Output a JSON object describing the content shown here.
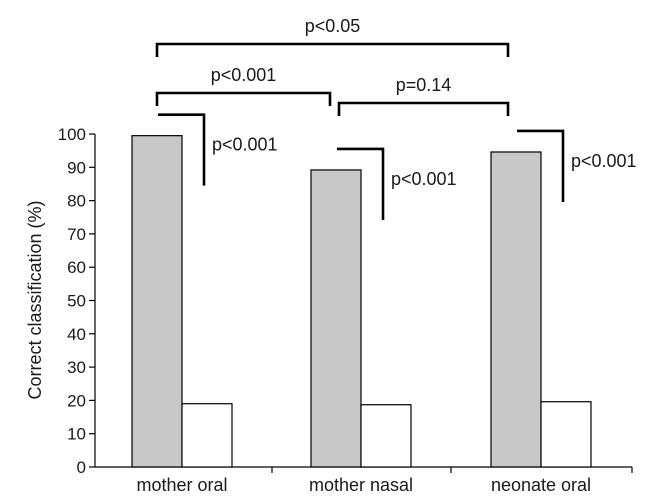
{
  "chart_data": {
    "type": "bar",
    "categories": [
      "mother oral",
      "mother nasal",
      "neonate oral"
    ],
    "series": [
      {
        "values": [
          99.5,
          89.2,
          94.6
        ],
        "color": "#c8c8c8"
      },
      {
        "values": [
          19.0,
          18.7,
          19.6
        ],
        "color": "#ffffff"
      }
    ],
    "ylabel": "Correct classification (%)",
    "yticks": [
      0,
      10,
      20,
      30,
      40,
      50,
      60,
      70,
      80,
      90,
      100
    ],
    "ylim": [
      0,
      100
    ],
    "grid": false,
    "legend": "none",
    "annotations": {
      "within_category": [
        "p<0.001",
        "p<0.001",
        "p<0.001"
      ],
      "between_categories": [
        {
          "from": "mother oral",
          "to": "neonate oral",
          "label": "p<0.05"
        },
        {
          "from": "mother oral",
          "to": "mother nasal",
          "label": "p<0.001"
        },
        {
          "from": "mother nasal",
          "to": "neonate oral",
          "label": "p=0.14"
        }
      ]
    }
  }
}
